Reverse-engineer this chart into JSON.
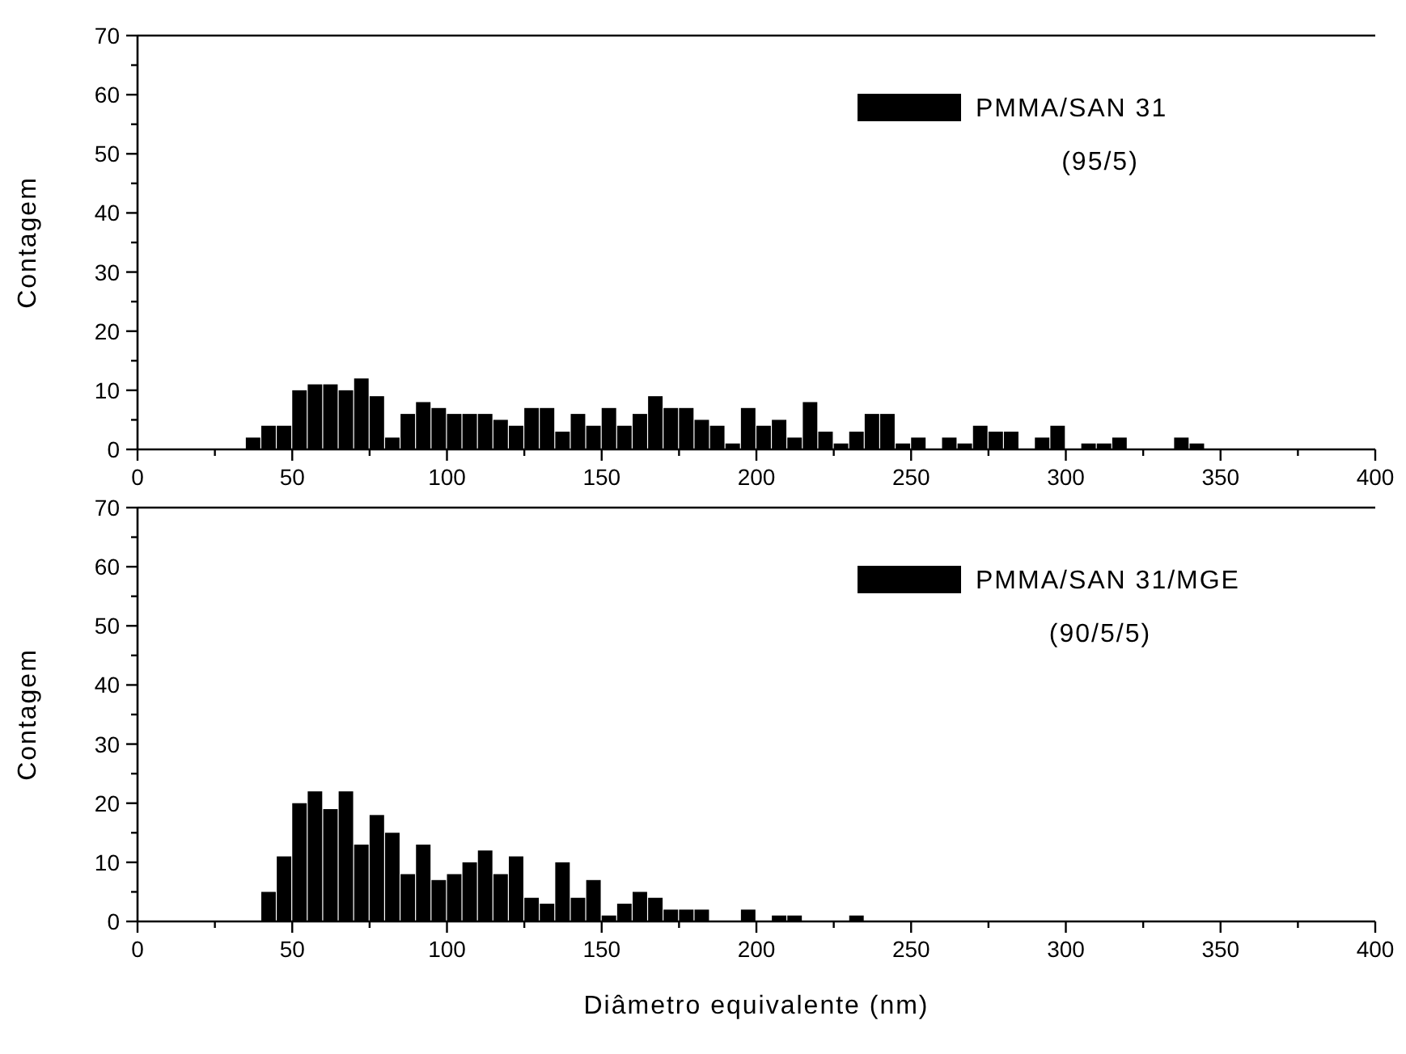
{
  "chart_data": [
    {
      "type": "histogram",
      "ylabel": "Contagem",
      "bins": [
        35,
        40,
        45,
        50,
        55,
        60,
        65,
        70,
        75,
        80,
        85,
        90,
        95,
        100,
        105,
        110,
        115,
        120,
        125,
        130,
        135,
        140,
        145,
        150,
        155,
        160,
        165,
        170,
        175,
        180,
        185,
        190,
        195,
        200,
        205,
        210,
        215,
        220,
        225,
        230,
        235,
        240,
        245,
        250,
        255,
        260,
        265,
        270,
        275,
        280,
        285,
        290,
        295,
        300,
        305,
        310,
        315,
        320,
        325,
        330,
        335,
        340,
        345
      ],
      "series": [
        {
          "name": "PMMA/SAN 31",
          "color": "#000000",
          "values": [
            2,
            4,
            4,
            10,
            11,
            11,
            10,
            12,
            9,
            2,
            6,
            8,
            7,
            6,
            6,
            6,
            5,
            4,
            7,
            7,
            3,
            6,
            4,
            7,
            4,
            6,
            9,
            7,
            7,
            5,
            4,
            1,
            7,
            4,
            5,
            2,
            8,
            3,
            1,
            3,
            6,
            6,
            1,
            2,
            0,
            2,
            1,
            4,
            3,
            3,
            0,
            2,
            4,
            0,
            1,
            1,
            2,
            0,
            0,
            0,
            2,
            1
          ]
        }
      ],
      "annotations": [
        "(95/5)"
      ],
      "legend": "top right",
      "xlim": [
        0,
        400
      ],
      "ylim": [
        0,
        70
      ],
      "xticks": [
        0,
        {
          "value": 25,
          "label": null
        },
        50,
        {
          "value": 75,
          "label": null
        },
        100,
        {
          "value": 125,
          "label": null
        },
        150,
        {
          "value": 175,
          "label": null
        },
        200,
        {
          "value": 225,
          "label": null
        },
        250,
        {
          "value": 275,
          "label": null
        },
        300,
        {
          "value": 325,
          "label": null
        },
        350,
        {
          "value": 375,
          "label": null
        },
        400
      ],
      "yticks": [
        0,
        {
          "value": 5,
          "label": null
        },
        10,
        {
          "value": 15,
          "label": null
        },
        20,
        {
          "value": 25,
          "label": null
        },
        30,
        {
          "value": 35,
          "label": null
        },
        40,
        {
          "value": 45,
          "label": null
        },
        50,
        {
          "value": 55,
          "label": null
        },
        60,
        {
          "value": 65,
          "label": null
        },
        70
      ]
    },
    {
      "type": "histogram",
      "ylabel": "Contagem",
      "xlabel": "Diâmetro equivalente (nm)",
      "bins": [
        40,
        45,
        50,
        55,
        60,
        65,
        70,
        75,
        80,
        85,
        90,
        95,
        100,
        105,
        110,
        115,
        120,
        125,
        130,
        135,
        140,
        145,
        150,
        155,
        160,
        165,
        170,
        175,
        180,
        185,
        190,
        195,
        200,
        205,
        210,
        215,
        220,
        225,
        230,
        235
      ],
      "series": [
        {
          "name": "PMMA/SAN 31/MGE",
          "color": "#000000",
          "values": [
            5,
            11,
            20,
            22,
            19,
            22,
            13,
            18,
            15,
            8,
            13,
            7,
            8,
            10,
            12,
            8,
            11,
            4,
            3,
            10,
            4,
            7,
            1,
            3,
            5,
            4,
            2,
            2,
            2,
            0,
            0,
            2,
            0,
            1,
            1,
            0,
            0,
            0,
            1
          ]
        }
      ],
      "annotations": [
        "(90/5/5)"
      ],
      "legend": "top right",
      "xlim": [
        0,
        400
      ],
      "ylim": [
        0,
        70
      ],
      "xticks": [
        0,
        {
          "value": 25,
          "label": null
        },
        50,
        {
          "value": 75,
          "label": null
        },
        100,
        {
          "value": 125,
          "label": null
        },
        150,
        {
          "value": 175,
          "label": null
        },
        200,
        {
          "value": 225,
          "label": null
        },
        250,
        {
          "value": 275,
          "label": null
        },
        300,
        {
          "value": 325,
          "label": null
        },
        350,
        {
          "value": 375,
          "label": null
        },
        400
      ],
      "yticks": [
        0,
        {
          "value": 5,
          "label": null
        },
        10,
        {
          "value": 15,
          "label": null
        },
        20,
        {
          "value": 25,
          "label": null
        },
        30,
        {
          "value": 35,
          "label": null
        },
        40,
        {
          "value": 45,
          "label": null
        },
        50,
        {
          "value": 55,
          "label": null
        },
        60,
        {
          "value": 65,
          "label": null
        },
        70
      ]
    }
  ]
}
